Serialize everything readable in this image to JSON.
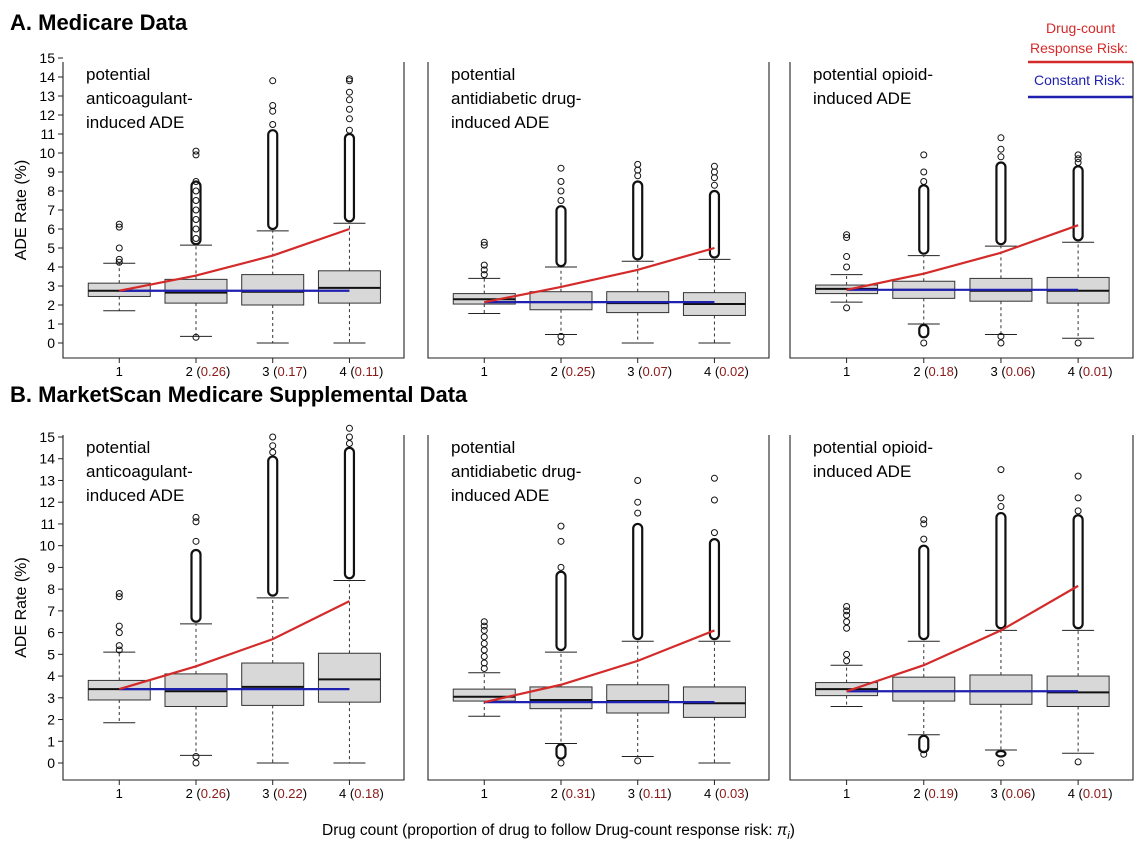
{
  "figure": {
    "title_a": "A. Medicare Data",
    "title_b": "B. MarketScan Medicare Supplemental Data",
    "xaxis_label": "Drug count (proportion of drug to follow Drug-count response risk: ",
    "xaxis_label_symbol": "π",
    "xaxis_label_subscript": "i",
    "xaxis_label_close": ")",
    "legend": {
      "response_line1": "Drug-count",
      "response_line2": "Response Risk:",
      "constant": "Constant Risk:",
      "response_color": "#d42a2a",
      "constant_color": "#1f1fb0"
    },
    "colors": {
      "box_fill": "#d8d8d8",
      "proportion_text": "#8b1a1a"
    }
  },
  "chart_data": [
    {
      "type": "boxplot",
      "row": "A",
      "panel_label": [
        "potential",
        "anticoagulant-",
        "induced ADE"
      ],
      "ylabel": "ADE Rate (%)",
      "ylim": [
        0,
        15
      ],
      "y_ticks": [
        0,
        1,
        2,
        3,
        4,
        5,
        6,
        7,
        8,
        9,
        10,
        11,
        12,
        13,
        14,
        15
      ],
      "categories": [
        "1",
        "2",
        "3",
        "4"
      ],
      "proportions": [
        "",
        "0.26",
        "0.17",
        "0.11"
      ],
      "boxes": [
        {
          "q1": 2.45,
          "median": 2.75,
          "q3": 3.15,
          "whisker_low": 1.7,
          "whisker_high": 4.2,
          "outliers": [
            6.25,
            6.1,
            5.0,
            4.4,
            4.25
          ]
        },
        {
          "q1": 2.1,
          "median": 2.65,
          "q3": 3.35,
          "whisker_low": 0.35,
          "whisker_high": 5.15,
          "outliers": [
            10.1,
            9.9,
            8.5,
            8.0,
            7.5,
            7.0,
            6.5,
            6.0,
            5.5,
            0.3
          ],
          "outlier_band": [
            5.2,
            8.5
          ]
        },
        {
          "q1": 2.0,
          "median": 2.7,
          "q3": 3.6,
          "whisker_low": 0,
          "whisker_high": 5.9,
          "outliers": [
            13.8,
            12.5,
            12.2,
            11.5
          ],
          "outlier_band": [
            6.0,
            11.2
          ]
        },
        {
          "q1": 2.1,
          "median": 2.9,
          "q3": 3.8,
          "whisker_low": 0,
          "whisker_high": 6.3,
          "outliers": [
            13.9,
            13.8,
            13.2,
            12.8,
            12.3,
            11.8,
            11.2
          ],
          "outlier_band": [
            6.4,
            11.0
          ]
        }
      ],
      "series": [
        {
          "name": "Drug-count Response Risk",
          "values": [
            2.75,
            3.55,
            4.6,
            6.0
          ]
        },
        {
          "name": "Constant Risk",
          "values": [
            2.75,
            2.75,
            2.75,
            2.75
          ]
        }
      ]
    },
    {
      "type": "boxplot",
      "row": "A",
      "panel_label": [
        "potential",
        "antidiabetic drug-",
        "induced ADE"
      ],
      "ylim": [
        0,
        15
      ],
      "categories": [
        "1",
        "2",
        "3",
        "4"
      ],
      "proportions": [
        "",
        "0.25",
        "0.07",
        "0.02"
      ],
      "boxes": [
        {
          "q1": 2.05,
          "median": 2.3,
          "q3": 2.6,
          "whisker_low": 1.55,
          "whisker_high": 3.4,
          "outliers": [
            5.3,
            5.15,
            4.1,
            3.85,
            3.6
          ]
        },
        {
          "q1": 1.75,
          "median": 2.15,
          "q3": 2.7,
          "whisker_low": 0.45,
          "whisker_high": 4.0,
          "outliers": [
            9.2,
            8.5,
            8.0,
            7.5,
            0.35,
            0.05
          ],
          "outlier_band": [
            4.05,
            7.2
          ]
        },
        {
          "q1": 1.6,
          "median": 2.1,
          "q3": 2.7,
          "whisker_low": 0,
          "whisker_high": 4.3,
          "outliers": [
            9.4,
            9.1,
            8.8
          ],
          "outlier_band": [
            4.4,
            8.5
          ]
        },
        {
          "q1": 1.45,
          "median": 2.05,
          "q3": 2.65,
          "whisker_low": 0,
          "whisker_high": 4.4,
          "outliers": [
            9.3,
            9.0,
            8.7,
            8.3
          ],
          "outlier_band": [
            4.5,
            8.0
          ]
        }
      ],
      "series": [
        {
          "name": "Drug-count Response Risk",
          "values": [
            2.15,
            2.95,
            3.85,
            5.0
          ]
        },
        {
          "name": "Constant Risk",
          "values": [
            2.15,
            2.15,
            2.15,
            2.15
          ]
        }
      ]
    },
    {
      "type": "boxplot",
      "row": "A",
      "panel_label": [
        "potential opioid-",
        "induced ADE"
      ],
      "ylim": [
        0,
        15
      ],
      "categories": [
        "1",
        "2",
        "3",
        "4"
      ],
      "proportions": [
        "",
        "0.18",
        "0.06",
        "0.01"
      ],
      "boxes": [
        {
          "q1": 2.6,
          "median": 2.85,
          "q3": 3.05,
          "whisker_low": 2.15,
          "whisker_high": 3.6,
          "outliers": [
            5.7,
            5.55,
            4.55,
            4.0,
            1.85
          ]
        },
        {
          "q1": 2.35,
          "median": 2.8,
          "q3": 3.25,
          "whisker_low": 1.0,
          "whisker_high": 4.6,
          "outliers": [
            9.9,
            9.0,
            8.5,
            0.0
          ],
          "outlier_band": [
            4.7,
            8.3
          ],
          "outlier_band_low": [
            0.3,
            0.95
          ]
        },
        {
          "q1": 2.2,
          "median": 2.75,
          "q3": 3.4,
          "whisker_low": 0.45,
          "whisker_high": 5.1,
          "outliers": [
            10.8,
            10.2,
            9.8,
            0.35,
            0.0
          ],
          "outlier_band": [
            5.2,
            9.5
          ]
        },
        {
          "q1": 2.1,
          "median": 2.75,
          "q3": 3.45,
          "whisker_low": 0.25,
          "whisker_high": 5.3,
          "outliers": [
            9.9,
            9.7,
            9.5,
            0.0
          ],
          "outlier_band": [
            5.4,
            9.3
          ]
        }
      ],
      "series": [
        {
          "name": "Drug-count Response Risk",
          "values": [
            2.8,
            3.65,
            4.75,
            6.2
          ]
        },
        {
          "name": "Constant Risk",
          "values": [
            2.8,
            2.8,
            2.8,
            2.8
          ]
        }
      ]
    },
    {
      "type": "boxplot",
      "row": "B",
      "panel_label": [
        "potential",
        "anticoagulant-",
        "induced ADE"
      ],
      "ylabel": "ADE Rate (%)",
      "ylim": [
        0,
        15
      ],
      "y_ticks": [
        0,
        1,
        2,
        3,
        4,
        5,
        6,
        7,
        8,
        9,
        10,
        11,
        12,
        13,
        14,
        15
      ],
      "categories": [
        "1",
        "2",
        "3",
        "4"
      ],
      "proportions": [
        "",
        "0.26",
        "0.22",
        "0.18"
      ],
      "boxes": [
        {
          "q1": 2.9,
          "median": 3.4,
          "q3": 3.8,
          "whisker_low": 1.85,
          "whisker_high": 5.1,
          "outliers": [
            7.8,
            7.65,
            6.3,
            6.0,
            5.4,
            5.2
          ]
        },
        {
          "q1": 2.6,
          "median": 3.3,
          "q3": 4.1,
          "whisker_low": 0.35,
          "whisker_high": 6.4,
          "outliers": [
            11.3,
            11.1,
            10.2,
            0.3,
            0.0
          ],
          "outlier_band": [
            6.5,
            9.8
          ]
        },
        {
          "q1": 2.65,
          "median": 3.5,
          "q3": 4.6,
          "whisker_low": 0,
          "whisker_high": 7.6,
          "outliers": [
            15.0,
            14.6,
            14.3
          ],
          "outlier_band": [
            7.7,
            14.1
          ]
        },
        {
          "q1": 2.8,
          "median": 3.85,
          "q3": 5.05,
          "whisker_low": 0,
          "whisker_high": 8.4,
          "outliers": [
            15.4,
            15.0,
            14.7
          ],
          "outlier_band": [
            8.5,
            14.5
          ]
        }
      ],
      "series": [
        {
          "name": "Drug-count Response Risk",
          "values": [
            3.4,
            4.45,
            5.7,
            7.45
          ]
        },
        {
          "name": "Constant Risk",
          "values": [
            3.4,
            3.4,
            3.4,
            3.4
          ]
        }
      ]
    },
    {
      "type": "boxplot",
      "row": "B",
      "panel_label": [
        "potential",
        "antidiabetic drug-",
        "induced ADE"
      ],
      "ylim": [
        0,
        15
      ],
      "categories": [
        "1",
        "2",
        "3",
        "4"
      ],
      "proportions": [
        "",
        "0.31",
        "0.11",
        "0.03"
      ],
      "boxes": [
        {
          "q1": 2.85,
          "median": 3.05,
          "q3": 3.4,
          "whisker_low": 2.15,
          "whisker_high": 4.15,
          "outliers": [
            6.5,
            6.3,
            6.1,
            5.8,
            5.5,
            5.2,
            4.9,
            4.6,
            4.35
          ]
        },
        {
          "q1": 2.5,
          "median": 2.9,
          "q3": 3.5,
          "whisker_low": 0.9,
          "whisker_high": 5.1,
          "outliers": [
            10.9,
            10.2,
            9.0,
            0.0
          ],
          "outlier_band": [
            5.2,
            8.8
          ],
          "outlier_band_low": [
            0.2,
            0.85
          ]
        },
        {
          "q1": 2.3,
          "median": 2.85,
          "q3": 3.6,
          "whisker_low": 0.3,
          "whisker_high": 5.6,
          "outliers": [
            13.0,
            12.0,
            11.5,
            0.1
          ],
          "outlier_band": [
            5.7,
            11.0
          ]
        },
        {
          "q1": 2.1,
          "median": 2.75,
          "q3": 3.5,
          "whisker_low": 0,
          "whisker_high": 5.6,
          "outliers": [
            13.1,
            12.1,
            10.6
          ],
          "outlier_band": [
            5.7,
            10.3
          ]
        }
      ],
      "series": [
        {
          "name": "Drug-count Response Risk",
          "values": [
            2.8,
            3.6,
            4.7,
            6.1
          ]
        },
        {
          "name": "Constant Risk",
          "values": [
            2.8,
            2.8,
            2.8,
            2.8
          ]
        }
      ]
    },
    {
      "type": "boxplot",
      "row": "B",
      "panel_label": [
        "potential opioid-",
        "induced ADE"
      ],
      "ylim": [
        0,
        15
      ],
      "categories": [
        "1",
        "2",
        "3",
        "4"
      ],
      "proportions": [
        "",
        "0.19",
        "0.06",
        "0.01"
      ],
      "boxes": [
        {
          "q1": 3.1,
          "median": 3.4,
          "q3": 3.7,
          "whisker_low": 2.6,
          "whisker_high": 4.5,
          "outliers": [
            7.2,
            7.0,
            6.8,
            6.5,
            6.2,
            5.0,
            4.7
          ]
        },
        {
          "q1": 2.85,
          "median": 3.3,
          "q3": 3.95,
          "whisker_low": 1.3,
          "whisker_high": 5.6,
          "outliers": [
            11.2,
            11.0,
            10.3,
            0.4
          ],
          "outlier_band": [
            5.7,
            10.0
          ],
          "outlier_band_low": [
            0.5,
            1.25
          ]
        },
        {
          "q1": 2.7,
          "median": 3.3,
          "q3": 4.05,
          "whisker_low": 0.6,
          "whisker_high": 6.1,
          "outliers": [
            13.5,
            12.2,
            11.8,
            0.0
          ],
          "outlier_band": [
            6.2,
            11.5
          ],
          "outlier_band_low": [
            0.3,
            0.55
          ]
        },
        {
          "q1": 2.6,
          "median": 3.25,
          "q3": 4.0,
          "whisker_low": 0.45,
          "whisker_high": 6.1,
          "outliers": [
            13.2,
            12.2,
            11.6,
            0.05
          ],
          "outlier_band": [
            6.2,
            11.4
          ]
        }
      ],
      "series": [
        {
          "name": "Drug-count Response Risk",
          "values": [
            3.3,
            4.5,
            6.1,
            8.15
          ]
        },
        {
          "name": "Constant Risk",
          "values": [
            3.3,
            3.3,
            3.3,
            3.3
          ]
        }
      ]
    }
  ]
}
